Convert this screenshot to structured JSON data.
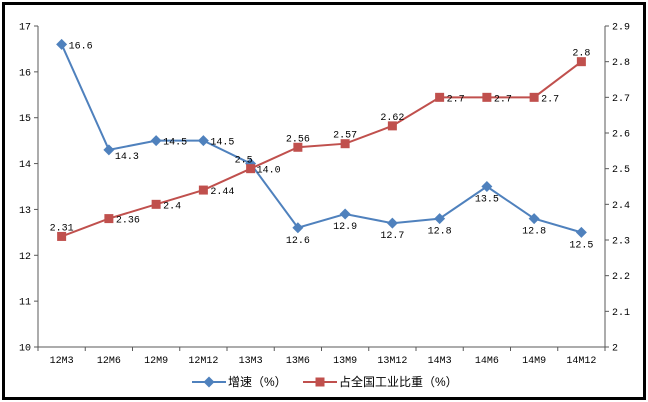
{
  "chart_data": {
    "type": "line",
    "title": "",
    "grid": false,
    "legend_position": "bottom",
    "categories": [
      "12M3",
      "12M6",
      "12M9",
      "12M12",
      "13M3",
      "13M6",
      "13M9",
      "13M12",
      "14M3",
      "14M6",
      "14M9",
      "14M12"
    ],
    "series": [
      {
        "id": "growth",
        "name": "增速（%）",
        "axis": "left",
        "color": "#4F81BD",
        "marker": "diamond",
        "values": [
          16.6,
          14.3,
          14.5,
          14.5,
          14.0,
          12.6,
          12.9,
          12.7,
          12.8,
          13.5,
          12.8,
          12.5
        ],
        "labels": [
          "16.6",
          "14.3",
          "14.5",
          "14.5",
          "14.0",
          "12.6",
          "12.9",
          "12.7",
          "12.8",
          "13.5",
          "12.8",
          "12.5"
        ],
        "label_side": [
          "right",
          "right-low",
          "right",
          "right",
          "right-low",
          "below",
          "below",
          "below",
          "below",
          "below",
          "below",
          "below"
        ]
      },
      {
        "id": "share",
        "name": "占全国工业比重（%）",
        "axis": "right",
        "color": "#C0504D",
        "marker": "square",
        "values": [
          2.31,
          2.36,
          2.4,
          2.44,
          2.5,
          2.56,
          2.57,
          2.62,
          2.7,
          2.7,
          2.7,
          2.8
        ],
        "labels": [
          "2.31",
          "2.36",
          "2.4",
          "2.44",
          "2.5",
          "2.56",
          "2.57",
          "2.62",
          "2.7",
          "2.7",
          "2.7",
          "2.8"
        ],
        "label_side": [
          "above",
          "right",
          "right",
          "right",
          "above-left",
          "above",
          "above",
          "above",
          "right",
          "right",
          "right",
          "above"
        ]
      }
    ],
    "left_axis": {
      "min": 10,
      "max": 17,
      "ticks": [
        "10",
        "11",
        "12",
        "13",
        "14",
        "15",
        "16",
        "17"
      ]
    },
    "right_axis": {
      "min": 2,
      "max": 2.9,
      "ticks": [
        "2",
        "2.1",
        "2.2",
        "2.3",
        "2.4",
        "2.5",
        "2.6",
        "2.7",
        "2.8",
        "2.9"
      ]
    },
    "axis_color": "#595959"
  }
}
